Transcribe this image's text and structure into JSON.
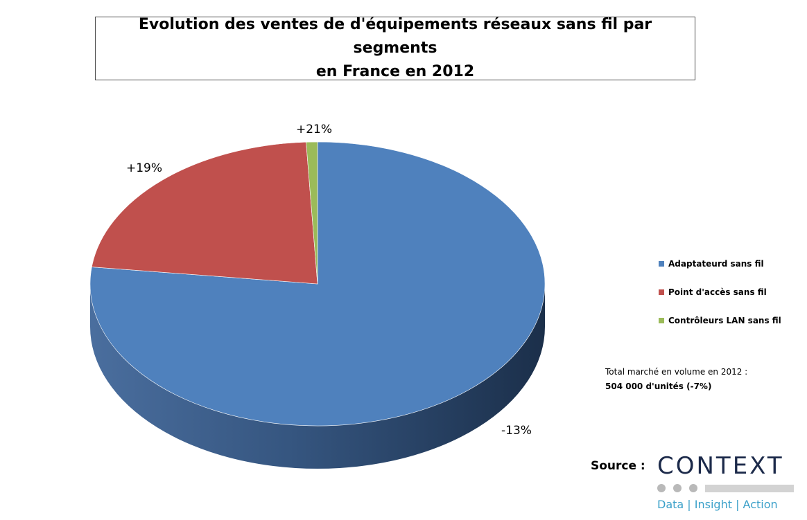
{
  "chart_data": {
    "type": "pie",
    "title_line1": "Evolution des ventes de d'équipements réseaux sans fil par segments",
    "title_line2": "en France en 2012",
    "series": [
      {
        "name": "Adaptateurd sans fil",
        "share": 76.9,
        "label": "-13%",
        "color": "#4f81bd",
        "side": "#2a4a70"
      },
      {
        "name": "Point d'accès sans fil",
        "share": 22.3,
        "label": "+19%",
        "color": "#c0504d",
        "side": "#7a2e2c"
      },
      {
        "name": "Contrôleurs LAN sans fil",
        "share": 0.8,
        "label": "+21%",
        "color": "#9bbb59",
        "side": "#5f7a33"
      }
    ],
    "style": "3d",
    "legend_position": "right"
  },
  "note": {
    "line1": "Total marché en volume en 2012 :",
    "line2": "504 000 d'unités (-7%)"
  },
  "source": {
    "label": "Source :",
    "logo_word": "CONTEXT",
    "logo_tagline": "Data | Insight | Action"
  }
}
